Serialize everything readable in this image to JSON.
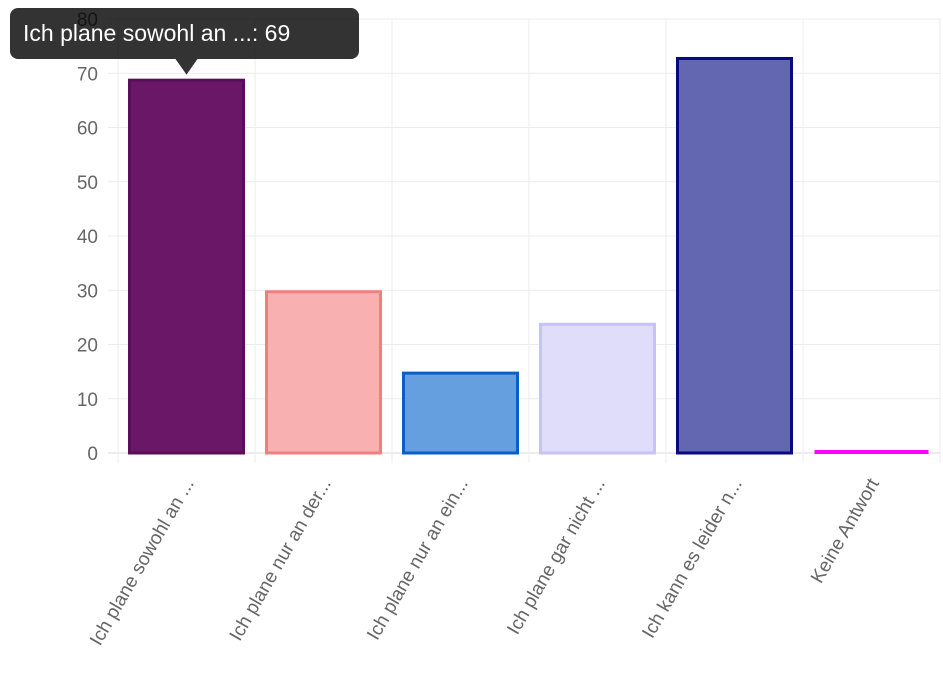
{
  "chart_data": {
    "type": "bar",
    "categories": [
      "Ich plane sowohl an ...",
      "Ich plane nur an der...",
      "Ich plane nur an ein...",
      "Ich plane gar nicht ...",
      "Ich kann es leider n...",
      "Keine Antwort"
    ],
    "values": [
      69,
      30,
      15,
      24,
      73,
      0
    ],
    "fill_colors": [
      "#6b1767",
      "#f9b0b0",
      "#659fdf",
      "#dfddfa",
      "#6366b0",
      "#ff00ff"
    ],
    "border_colors": [
      "#5a0d58",
      "#f08080",
      "#0a5ec8",
      "#c7c3f5",
      "#0a0a80",
      "#ff00ff"
    ],
    "ylim": [
      0,
      80
    ],
    "yticks": [
      0,
      10,
      20,
      30,
      40,
      50,
      60,
      70,
      80
    ],
    "grid": true,
    "legend": "none",
    "tooltip": {
      "text": "Ich plane sowohl an ...: 69",
      "category_index": 0
    }
  }
}
